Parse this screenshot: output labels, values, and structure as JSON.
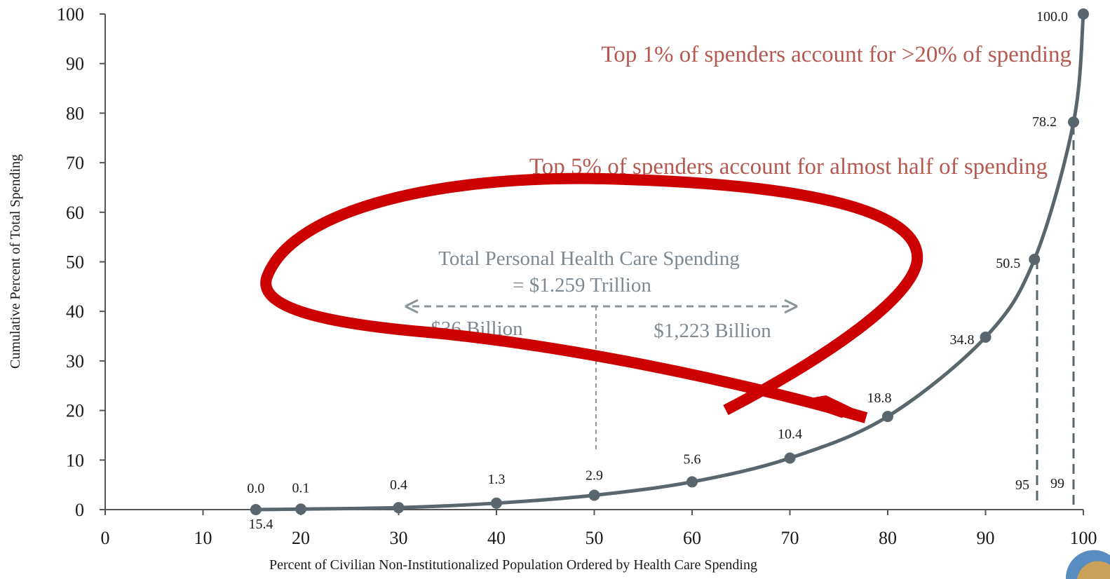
{
  "chart_data": {
    "type": "line",
    "title": "",
    "xlabel": "Percent of Civilian Non-Institutionalized Population Ordered by Health Care Spending",
    "ylabel": "Cumulative Percent of Total Spending",
    "xlim": [
      0,
      100
    ],
    "ylim": [
      0,
      100
    ],
    "x_ticks": [
      "0",
      "10",
      "20",
      "30",
      "40",
      "50",
      "60",
      "70",
      "80",
      "90",
      "100"
    ],
    "y_ticks": [
      "0",
      "10",
      "20",
      "30",
      "40",
      "50",
      "60",
      "70",
      "80",
      "90",
      "100"
    ],
    "grid": false,
    "series": [
      {
        "x": [
          15.4,
          20,
          30,
          40,
          50,
          60,
          70,
          80,
          90,
          95,
          99,
          100
        ],
        "y": [
          0.0,
          0.1,
          0.4,
          1.3,
          2.9,
          5.6,
          10.4,
          18.8,
          34.8,
          50.5,
          78.2,
          100.0
        ],
        "labels": [
          "0.0",
          "0.1",
          "0.4",
          "1.3",
          "2.9",
          "5.6",
          "10.4",
          "18.8",
          "34.8",
          "50.5",
          "78.2",
          "100.0"
        ],
        "color": "#5a666e"
      }
    ],
    "annotations": {
      "top1": "Top 1% of spenders account for >20% of spending",
      "top5": "Top 5% of spenders account for almost half of spending",
      "total_line1": "Total Personal Health Care Spending",
      "total_line2": "= $1.259 Trillion",
      "left_amount": "$36 Billion",
      "right_amount": "$1,223 Billion",
      "x_start_label": "15.4",
      "marker_95": "95",
      "marker_99": "99"
    },
    "colors": {
      "series": "#5a666e",
      "annotation_red": "#b5584f",
      "annotation_gray": "#7d8891",
      "overlay_red": "#cc0000"
    }
  }
}
